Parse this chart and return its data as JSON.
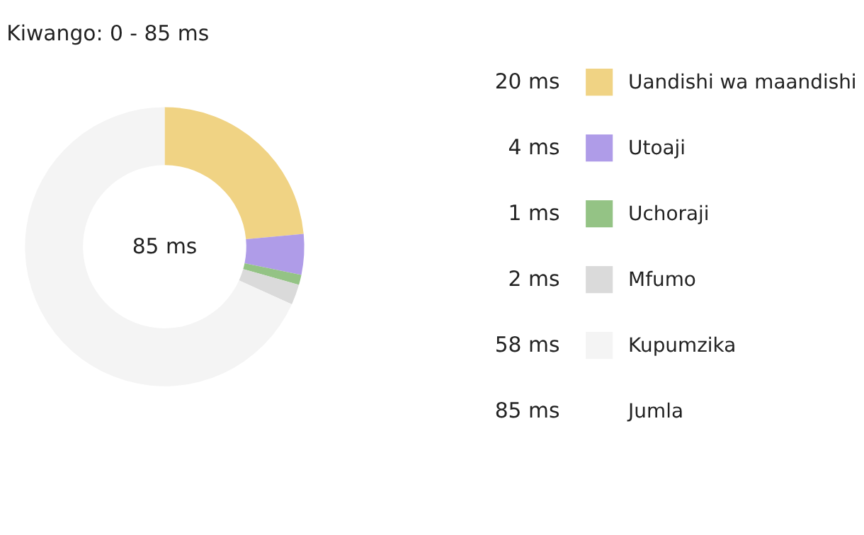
{
  "chart_data": {
    "type": "donut",
    "title": "Kiwango: 0 - 85 ms",
    "categories": [
      "Uandishi wa maandishi",
      "Utoaji",
      "Uchoraji",
      "Mfumo",
      "Kupumzika"
    ],
    "values": [
      20,
      4,
      1,
      2,
      58
    ],
    "colors": [
      "#f0d384",
      "#af9ce8",
      "#94c385",
      "#dadada",
      "#f4f4f4"
    ],
    "value_labels": [
      "20 ms",
      "4 ms",
      "1 ms",
      "2 ms",
      "58 ms"
    ],
    "annotations": [
      "85 ms",
      "85 ms",
      "Jumla"
    ],
    "legend": "right"
  }
}
